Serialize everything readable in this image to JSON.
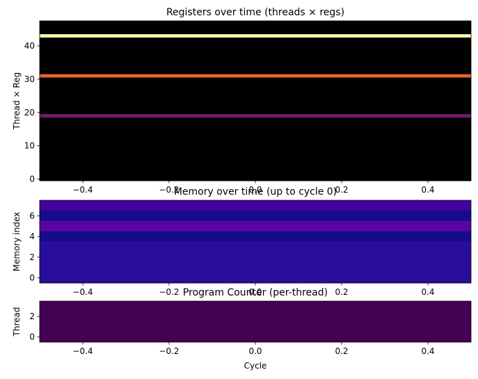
{
  "chart_data": [
    {
      "type": "heatmap",
      "title": "Registers over time (threads × regs)",
      "xlabel": "",
      "ylabel": "Thread × Reg",
      "xlim": [
        -0.5,
        0.5
      ],
      "ylim": [
        -0.5,
        47.5
      ],
      "x_ticks": [
        -0.4,
        -0.2,
        0.0,
        0.2,
        0.4
      ],
      "x_tick_labels": [
        "−0.4",
        "−0.2",
        "0.0",
        "0.2",
        "0.4"
      ],
      "y_ticks": [
        0,
        10,
        20,
        30,
        40
      ],
      "y_tick_labels": [
        "0",
        "10",
        "20",
        "30",
        "40"
      ],
      "colormap": "inferno",
      "x": [
        0
      ],
      "rows": [
        {
          "y": 19,
          "value": 0.35,
          "color": "#7a1a6a"
        },
        {
          "y": 31,
          "value": 0.7,
          "color": "#e8642a"
        },
        {
          "y": 43,
          "value": 1.0,
          "color": "#fcffa4"
        }
      ],
      "background_value": 0,
      "background_color": "#000000"
    },
    {
      "type": "heatmap",
      "title": "Memory over time (up to cycle 0)",
      "xlabel": "",
      "ylabel": "Memory index",
      "xlim": [
        -0.5,
        0.5
      ],
      "ylim": [
        -0.5,
        7.5
      ],
      "x_ticks": [
        -0.4,
        -0.2,
        0.0,
        0.2,
        0.4
      ],
      "x_tick_labels": [
        "−0.4",
        "−0.2",
        "0.0",
        "0.2",
        "0.4"
      ],
      "y_ticks": [
        0,
        2,
        4,
        6
      ],
      "y_tick_labels": [
        "0",
        "2",
        "4",
        "6"
      ],
      "colormap": "plasma",
      "x": [
        0
      ],
      "rows": [
        {
          "y": 0,
          "color": "#2a0d9a"
        },
        {
          "y": 1,
          "color": "#2a0d9a"
        },
        {
          "y": 2,
          "color": "#2a0d9a"
        },
        {
          "y": 3,
          "color": "#2a0d9a"
        },
        {
          "y": 4,
          "color": "#160b8a"
        },
        {
          "y": 5,
          "color": "#5c03a6"
        },
        {
          "y": 6,
          "color": "#160b8a"
        },
        {
          "y": 7,
          "color": "#44029e"
        }
      ]
    },
    {
      "type": "heatmap",
      "title": "Program Counter (per-thread)",
      "xlabel": "Cycle",
      "ylabel": "Thread",
      "xlim": [
        -0.5,
        0.5
      ],
      "ylim": [
        -0.5,
        3.5
      ],
      "x_ticks": [
        -0.4,
        -0.2,
        0.0,
        0.2,
        0.4
      ],
      "x_tick_labels": [
        "−0.4",
        "−0.2",
        "0.0",
        "0.2",
        "0.4"
      ],
      "y_ticks": [
        0,
        2
      ],
      "y_tick_labels": [
        "0",
        "2"
      ],
      "colormap": "viridis",
      "x": [
        0
      ],
      "rows": [
        {
          "y": 0,
          "color": "#440154"
        },
        {
          "y": 1,
          "color": "#440154"
        },
        {
          "y": 2,
          "color": "#440154"
        },
        {
          "y": 3,
          "color": "#440154"
        }
      ]
    }
  ]
}
